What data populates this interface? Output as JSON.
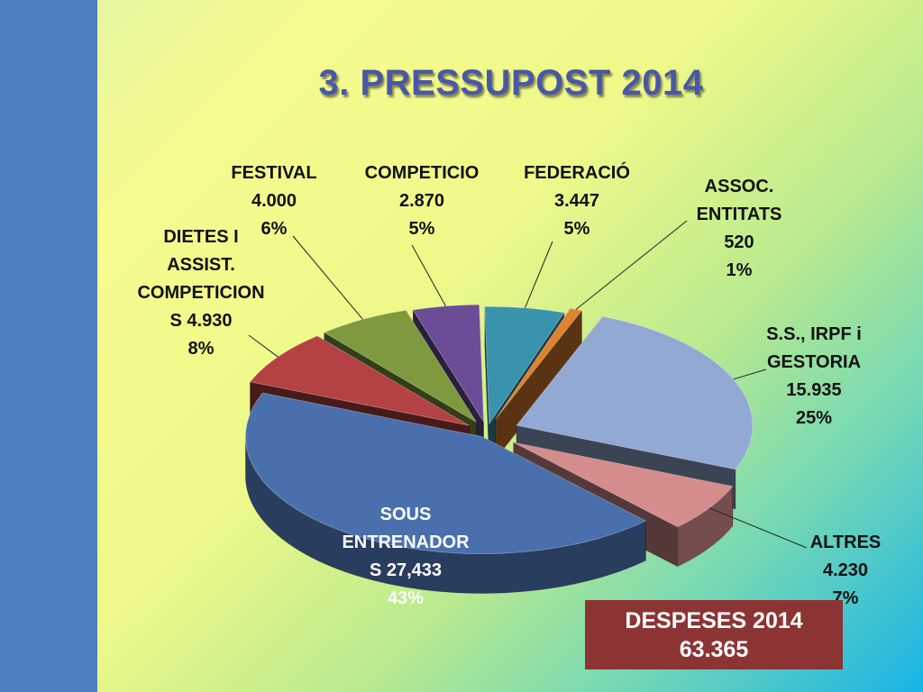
{
  "slide": {
    "title": "3. PRESSUPOST 2014",
    "colors": {
      "left_band": "#4f7fbf",
      "title": "#4a57a8",
      "total_box": "#8c3434"
    }
  },
  "total": {
    "line1": "DESPESES 2014",
    "line2": "63.365"
  },
  "chart_data": {
    "type": "pie",
    "style": "3d-exploded",
    "title": "",
    "slices": [
      {
        "name": "SOUS ENTRENADORS",
        "lines": [
          "SOUS",
          "ENTRENADOR",
          "S 27,433",
          "43%"
        ],
        "value": 27433,
        "percent": 43,
        "color": "#4a6fad"
      },
      {
        "name": "DIETES I ASSIST. COMPETICIONS",
        "lines": [
          "DIETES I",
          "ASSIST.",
          "COMPETICION",
          "S 4.930",
          "8%"
        ],
        "value": 4930,
        "percent": 8,
        "color": "#b54242"
      },
      {
        "name": "FESTIVAL",
        "lines": [
          "FESTIVAL",
          "4.000",
          "6%"
        ],
        "value": 4000,
        "percent": 6,
        "color": "#7f9a3e"
      },
      {
        "name": "COMPETICIO",
        "lines": [
          "COMPETICIO",
          "2.870",
          "5%"
        ],
        "value": 2870,
        "percent": 5,
        "color": "#6a4d96"
      },
      {
        "name": "FEDERACIÓ",
        "lines": [
          "FEDERACIÓ",
          "3.447",
          "5%"
        ],
        "value": 3447,
        "percent": 5,
        "color": "#3a93ad"
      },
      {
        "name": "ASSOC. ENTITATS",
        "lines": [
          "ASSOC.",
          "ENTITATS",
          "520",
          "1%"
        ],
        "value": 520,
        "percent": 1,
        "color": "#e0822e"
      },
      {
        "name": "S.S., IRPF i GESTORIA",
        "lines": [
          "S.S., IRPF i",
          "GESTORIA",
          "15.935",
          "25%"
        ],
        "value": 15935,
        "percent": 25,
        "color": "#92a9d3"
      },
      {
        "name": "ALTRES",
        "lines": [
          "ALTRES",
          "4.230",
          "7%"
        ],
        "value": 4230,
        "percent": 7,
        "color": "#d48c8c"
      }
    ]
  }
}
